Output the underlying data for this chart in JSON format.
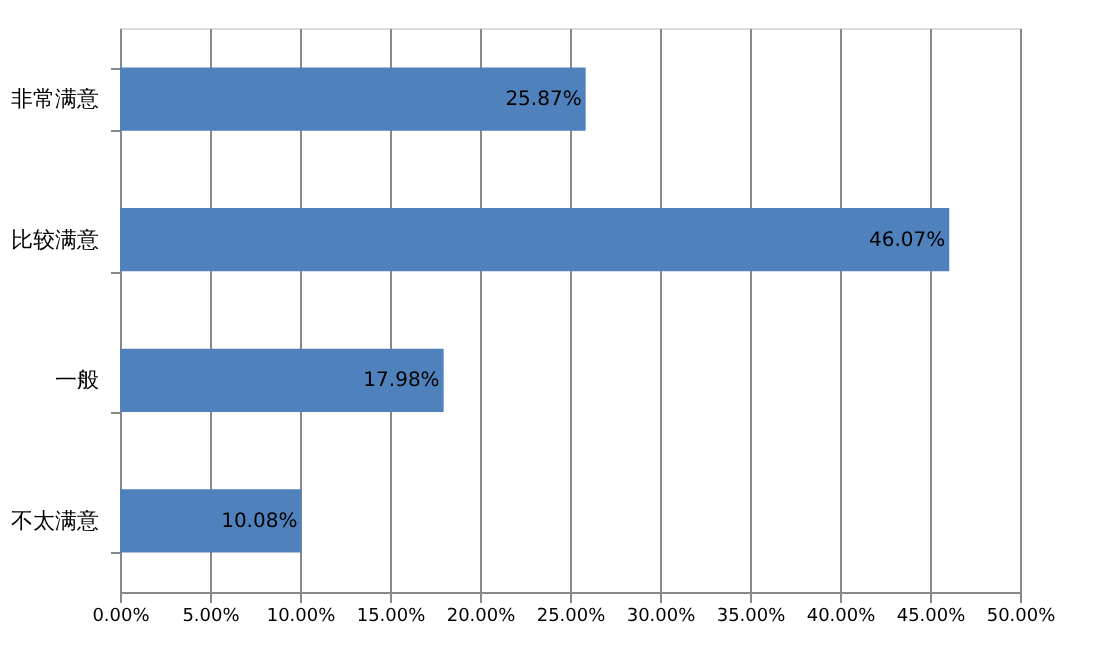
{
  "chart_data": {
    "type": "bar",
    "orientation": "horizontal",
    "categories": [
      "非常满意",
      "比较满意",
      "一般",
      "不太满意"
    ],
    "values": [
      25.87,
      46.07,
      17.98,
      10.08
    ],
    "value_labels": [
      "25.87%",
      "46.07%",
      "17.98%",
      "10.08%"
    ],
    "color": "#4f81bd",
    "xlim": [
      0,
      50
    ],
    "xticks": [
      {
        "value": 0,
        "label": "0.00%"
      },
      {
        "value": 5,
        "label": "5.00%"
      },
      {
        "value": 10,
        "label": "10.00%"
      },
      {
        "value": 15,
        "label": "15.00%"
      },
      {
        "value": 20,
        "label": "20.00%"
      },
      {
        "value": 25,
        "label": "25.00%"
      },
      {
        "value": 30,
        "label": "30.00%"
      },
      {
        "value": 35,
        "label": "35.00%"
      },
      {
        "value": 40,
        "label": "40.00%"
      },
      {
        "value": 45,
        "label": "45.00%"
      },
      {
        "value": 50,
        "label": "50.00%"
      }
    ],
    "grid": "x"
  }
}
